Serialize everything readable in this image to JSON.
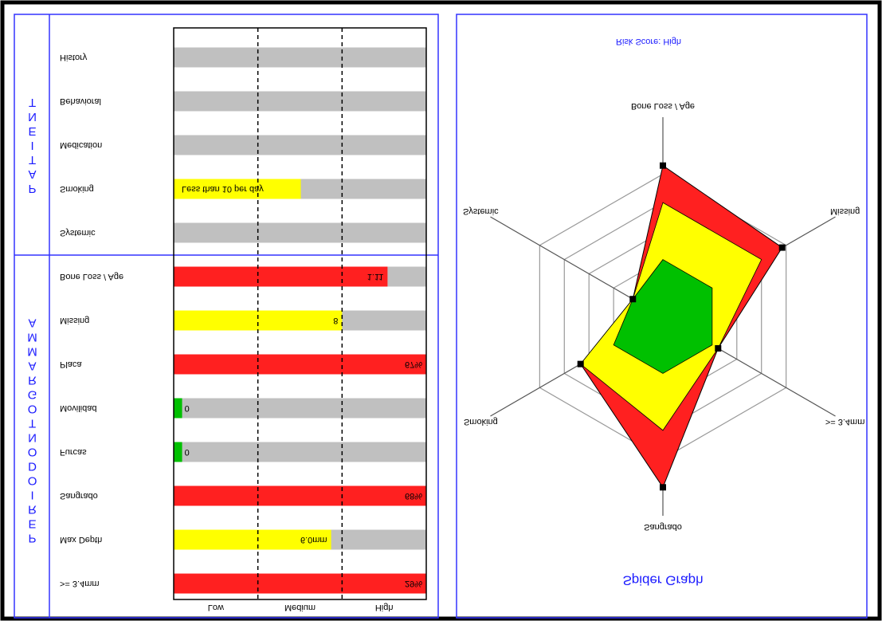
{
  "chart_data": [
    {
      "type": "bar",
      "orientation": "horizontal",
      "sections": [
        {
          "label": "PATIENT",
          "categories": [
            "History",
            "Behavioral",
            "Medication",
            "Smoking",
            "Systemic"
          ],
          "values": [
            null,
            null,
            null,
            1.51,
            null
          ],
          "value_labels": [
            null,
            null,
            null,
            "Less than 10 per day",
            null
          ],
          "colors": [
            null,
            null,
            null,
            "#ffff00",
            null
          ]
        },
        {
          "label": "PERIODONTOGRAMMA",
          "categories": [
            "Bone Loss / Age",
            "Missing",
            "Placa",
            "Movilidad",
            "Furcas",
            "Sangrado",
            "Max Depth",
            ">= 3.4mm"
          ],
          "values": [
            2.54,
            2.0,
            3,
            0.1,
            0.1,
            3,
            1.87,
            3
          ],
          "value_labels": [
            "1.11",
            "8",
            "67%",
            "0",
            "0",
            "68%",
            "6.0mm",
            "29%"
          ],
          "colors": [
            "#ff2020",
            "#ffff00",
            "#ff2020",
            "#00c000",
            "#00c000",
            "#ff2020",
            "#ffff00",
            "#ff2020"
          ]
        }
      ],
      "background_color": "#c0c0c0",
      "xlim": [
        0,
        3
      ],
      "xticks": [
        1,
        2
      ],
      "grid": true,
      "band_labels": [
        "Low",
        "Medium",
        "High"
      ]
    },
    {
      "type": "radar",
      "title": "Spider Graph",
      "subtitle": "Risk Score:  High",
      "axes": [
        "Bone Loss / Age",
        "Missing",
        ">= 3.4mm",
        "Sangrado",
        "Smoking",
        "Systemic"
      ],
      "series": [
        {
          "color": "#ff2020",
          "values": [
            2.65,
            2.42,
            1.12,
            3.0,
            1.67,
            0.61
          ]
        }
      ],
      "bands": [
        {
          "max": 1,
          "color": "#00c000"
        },
        {
          "max": 2,
          "color": "#ffff00"
        }
      ],
      "rlim": [
        0,
        3.5
      ],
      "rticks": [
        0.5,
        1,
        1.5,
        2,
        2.5
      ]
    }
  ]
}
